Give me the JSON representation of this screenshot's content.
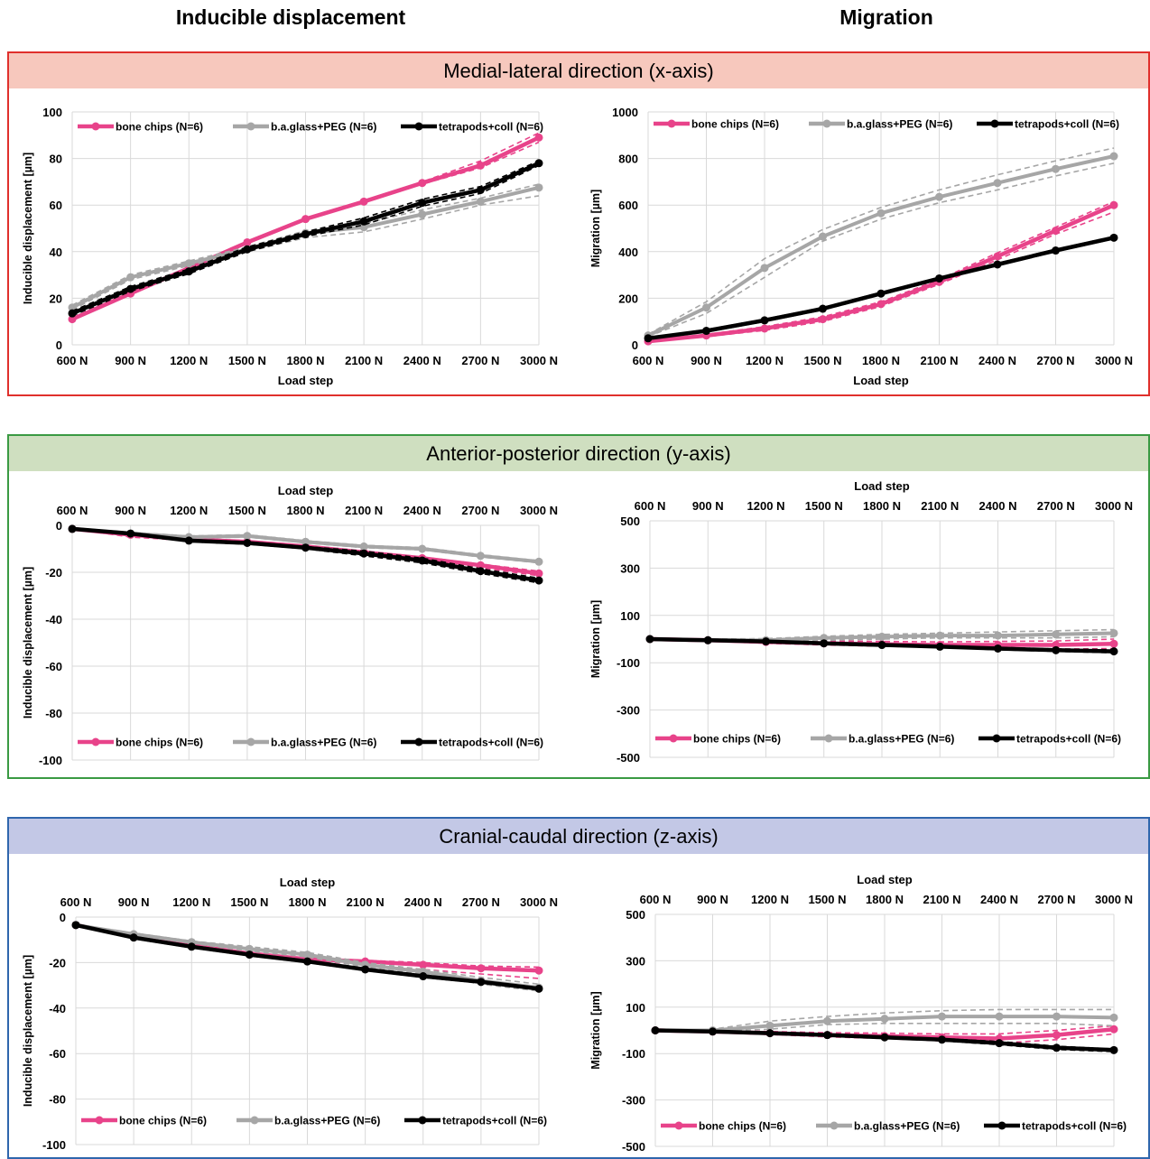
{
  "columns": {
    "left": "Inducible displacement",
    "right": "Migration"
  },
  "panels": [
    {
      "title": "Medial-lateral direction (x-axis)",
      "border": "#e0302c",
      "fill": "#f7c8bd"
    },
    {
      "title": "Anterior-posterior direction (y-axis)",
      "border": "#3a9a43",
      "fill": "#cfdfc0"
    },
    {
      "title": "Cranial-caudal direction (z-axis)",
      "border": "#2f66ad",
      "fill": "#c3c8e6"
    }
  ],
  "colors": {
    "bone": "#e8438a",
    "glass": "#a6a6a6",
    "tetra": "#000000",
    "grid": "#d9d9d9"
  },
  "chart_data": [
    {
      "id": "x-inducible",
      "type": "line",
      "xlabel": "Load step",
      "ylabel": "Inducible displacement [µm]",
      "ylim": [
        0,
        100
      ],
      "yticks": [
        0,
        20,
        40,
        60,
        80,
        100
      ],
      "xaxis_position": "bottom",
      "legend": "top-left",
      "categories": [
        "600 N",
        "900 N",
        "1200 N",
        "1500 N",
        "1800 N",
        "2100 N",
        "2400 N",
        "2700 N",
        "3000 N"
      ],
      "series": [
        {
          "name": "bone chips (N=6)",
          "color": "bone",
          "values": [
            11,
            22,
            33,
            44,
            54,
            61.5,
            69.5,
            77,
            89
          ],
          "upper": [
            11.5,
            22.5,
            33.5,
            44.5,
            54.5,
            62,
            70,
            79,
            91
          ],
          "lower": [
            10.5,
            21.5,
            32.5,
            43.5,
            53.5,
            61,
            69,
            76,
            87
          ]
        },
        {
          "name": "b.a.glass+PEG (N=6)",
          "color": "glass",
          "values": [
            16,
            29,
            35,
            41,
            48,
            50.5,
            56,
            61.5,
            67.5
          ],
          "upper": [
            17,
            30,
            36,
            42,
            49,
            52,
            58,
            63,
            69
          ],
          "lower": [
            15,
            28,
            34,
            40,
            46,
            48.5,
            54,
            60,
            64
          ]
        },
        {
          "name": "tetrapods+coll (N=6)",
          "color": "tetra",
          "values": [
            13.5,
            24,
            31.5,
            41,
            47.5,
            53,
            61,
            66.5,
            78
          ],
          "upper": [
            14.5,
            25,
            32.5,
            42,
            48.5,
            54.5,
            62.5,
            68,
            79
          ],
          "lower": [
            12.5,
            23,
            30.5,
            40,
            46.5,
            51.5,
            59.5,
            65,
            77
          ]
        }
      ]
    },
    {
      "id": "x-migration",
      "type": "line",
      "xlabel": "Load step",
      "ylabel": "Migration [µm]",
      "ylim": [
        0,
        1000
      ],
      "yticks": [
        0,
        200,
        400,
        600,
        800,
        1000
      ],
      "xaxis_position": "bottom",
      "legend": "top-left",
      "categories": [
        "600 N",
        "900 N",
        "1200 N",
        "1500 N",
        "1800 N",
        "2100 N",
        "2400 N",
        "2700 N",
        "3000 N"
      ],
      "series": [
        {
          "name": "bone chips (N=6)",
          "color": "bone",
          "values": [
            15,
            40,
            70,
            110,
            175,
            270,
            380,
            490,
            600
          ],
          "upper": [
            18,
            45,
            78,
            120,
            185,
            280,
            395,
            505,
            615
          ],
          "lower": [
            12,
            35,
            62,
            100,
            165,
            260,
            365,
            475,
            570
          ]
        },
        {
          "name": "b.a.glass+PEG (N=6)",
          "color": "glass",
          "values": [
            40,
            160,
            330,
            465,
            565,
            635,
            695,
            755,
            810
          ],
          "upper": [
            45,
            185,
            370,
            495,
            590,
            665,
            730,
            790,
            845
          ],
          "lower": [
            35,
            135,
            290,
            445,
            540,
            610,
            665,
            725,
            780
          ]
        },
        {
          "name": "tetrapods+coll (N=6)",
          "color": "tetra",
          "values": [
            28,
            60,
            105,
            155,
            220,
            285,
            345,
            405,
            460
          ],
          "upper": [
            30,
            65,
            110,
            160,
            225,
            290,
            350,
            410,
            465
          ],
          "lower": [
            26,
            55,
            100,
            150,
            215,
            280,
            340,
            400,
            455
          ]
        }
      ]
    },
    {
      "id": "y-inducible",
      "type": "line",
      "xlabel": "Load step",
      "ylabel": "Inducible displacement [µm]",
      "ylim": [
        -100,
        0
      ],
      "yticks": [
        0,
        -20,
        -40,
        -60,
        -80,
        -100
      ],
      "xaxis_position": "top",
      "legend": "bottom-left",
      "categories": [
        "600 N",
        "900 N",
        "1200 N",
        "1500 N",
        "1800 N",
        "2100 N",
        "2400 N",
        "2700 N",
        "3000 N"
      ],
      "series": [
        {
          "name": "bone chips (N=6)",
          "color": "bone",
          "values": [
            -1.5,
            -4,
            -6,
            -7,
            -9,
            -11.5,
            -14,
            -17,
            -20.5
          ],
          "upper": [
            -1.5,
            -3.5,
            -5.5,
            -6.5,
            -8.5,
            -11,
            -13.5,
            -16.5,
            -19.5
          ],
          "lower": [
            -1.5,
            -5,
            -6.5,
            -7.5,
            -9.5,
            -12,
            -14.5,
            -18,
            -21.5
          ]
        },
        {
          "name": "b.a.glass+PEG (N=6)",
          "color": "glass",
          "values": [
            -1.5,
            -3.5,
            -5,
            -4.5,
            -7,
            -9,
            -10,
            -13,
            -15.5
          ],
          "upper": [
            -1.5,
            -3,
            -4.5,
            -4,
            -6.5,
            -8.5,
            -9.5,
            -12.5,
            -15
          ],
          "lower": [
            -1.5,
            -4,
            -5.5,
            -5,
            -7.5,
            -9.5,
            -10.5,
            -13.5,
            -16
          ]
        },
        {
          "name": "tetrapods+coll (N=6)",
          "color": "tetra",
          "values": [
            -1.5,
            -3.5,
            -6.5,
            -7.5,
            -9.5,
            -12,
            -15,
            -19.5,
            -23.5
          ],
          "upper": [
            -1.5,
            -3.5,
            -6,
            -7,
            -9,
            -11,
            -14,
            -18.5,
            -22.5
          ],
          "lower": [
            -1.5,
            -3.5,
            -7,
            -8,
            -10,
            -13,
            -16,
            -20.5,
            -24.5
          ]
        }
      ]
    },
    {
      "id": "y-migration",
      "type": "line",
      "xlabel": "Load step",
      "ylabel": "Migration [µm]",
      "ylim": [
        -500,
        500
      ],
      "yticks": [
        500,
        300,
        100,
        -100,
        -300,
        -500
      ],
      "xaxis_position": "top",
      "legend": "bottom-left",
      "categories": [
        "600 N",
        "900 N",
        "1200 N",
        "1500 N",
        "1800 N",
        "2100 N",
        "2400 N",
        "2700 N",
        "3000 N"
      ],
      "series": [
        {
          "name": "bone chips (N=6)",
          "color": "bone",
          "values": [
            0,
            -5,
            -12,
            -18,
            -22,
            -25,
            -25,
            -25,
            -20
          ],
          "upper": [
            2,
            0,
            -5,
            -8,
            -10,
            -12,
            -10,
            -8,
            0
          ],
          "lower": [
            -2,
            -8,
            -18,
            -25,
            -30,
            -35,
            -40,
            -42,
            -40
          ]
        },
        {
          "name": "b.a.glass+PEG (N=6)",
          "color": "glass",
          "values": [
            0,
            -5,
            -5,
            5,
            10,
            15,
            15,
            20,
            25
          ],
          "upper": [
            2,
            0,
            2,
            12,
            20,
            25,
            30,
            35,
            40
          ],
          "lower": [
            -2,
            -10,
            -12,
            -5,
            0,
            5,
            5,
            5,
            10
          ]
        },
        {
          "name": "tetrapods+coll (N=6)",
          "color": "tetra",
          "values": [
            0,
            -5,
            -10,
            -18,
            -25,
            -32,
            -40,
            -47,
            -52
          ],
          "upper": [
            2,
            -3,
            -8,
            -15,
            -22,
            -28,
            -35,
            -42,
            -45
          ],
          "lower": [
            -2,
            -7,
            -12,
            -20,
            -28,
            -35,
            -45,
            -52,
            -58
          ]
        }
      ]
    },
    {
      "id": "z-inducible",
      "type": "line",
      "xlabel": "Load step",
      "ylabel": "Inducible displacement [µm]",
      "ylim": [
        -100,
        0
      ],
      "yticks": [
        0,
        -20,
        -40,
        -60,
        -80,
        -100
      ],
      "xaxis_position": "top",
      "legend": "bottom-left",
      "categories": [
        "600 N",
        "900 N",
        "1200 N",
        "1500 N",
        "1800 N",
        "2100 N",
        "2400 N",
        "2700 N",
        "3000 N"
      ],
      "series": [
        {
          "name": "bone chips (N=6)",
          "color": "bone",
          "values": [
            -3.5,
            -8.5,
            -12.5,
            -16,
            -18.5,
            -19.5,
            -21,
            -22.5,
            -23.5
          ],
          "upper": [
            -3.5,
            -8,
            -12,
            -15.5,
            -18,
            -19,
            -20,
            -21.5,
            -22
          ],
          "lower": [
            -3.5,
            -9,
            -13,
            -16.5,
            -19,
            -21,
            -23,
            -25,
            -27
          ]
        },
        {
          "name": "b.a.glass+PEG (N=6)",
          "color": "glass",
          "values": [
            -3.5,
            -7.5,
            -11,
            -14,
            -16.5,
            -21,
            -24,
            -28,
            -31
          ],
          "upper": [
            -3.5,
            -7,
            -10.5,
            -13,
            -15.5,
            -20,
            -23,
            -26.5,
            -29.5
          ],
          "lower": [
            -3.5,
            -8,
            -11.5,
            -15,
            -17.5,
            -22,
            -25,
            -29.5,
            -32.5
          ]
        },
        {
          "name": "tetrapods+coll (N=6)",
          "color": "tetra",
          "values": [
            -3.5,
            -9,
            -13,
            -16.5,
            -19.5,
            -23,
            -26,
            -28.5,
            -31.5
          ],
          "upper": [
            -3.5,
            -8.5,
            -12.5,
            -16,
            -19,
            -22.5,
            -25.5,
            -28,
            -31
          ],
          "lower": [
            -3.5,
            -9.5,
            -13.5,
            -17,
            -20,
            -23.5,
            -26.5,
            -29,
            -32
          ]
        }
      ]
    },
    {
      "id": "z-migration",
      "type": "line",
      "xlabel": "Load step",
      "ylabel": "Migration [µm]",
      "ylim": [
        -500,
        500
      ],
      "yticks": [
        500,
        300,
        100,
        -100,
        -300,
        -500
      ],
      "xaxis_position": "top",
      "legend": "bottom-left",
      "categories": [
        "600 N",
        "900 N",
        "1200 N",
        "1500 N",
        "1800 N",
        "2100 N",
        "2400 N",
        "2700 N",
        "3000 N"
      ],
      "series": [
        {
          "name": "bone chips (N=6)",
          "color": "bone",
          "values": [
            0,
            -5,
            -12,
            -20,
            -25,
            -30,
            -35,
            -20,
            5
          ],
          "upper": [
            2,
            0,
            -5,
            -10,
            -12,
            -15,
            -15,
            0,
            20
          ],
          "lower": [
            -2,
            -8,
            -18,
            -28,
            -35,
            -45,
            -55,
            -40,
            -15
          ]
        },
        {
          "name": "b.a.glass+PEG (N=6)",
          "color": "glass",
          "values": [
            0,
            0,
            20,
            40,
            50,
            60,
            60,
            60,
            55
          ],
          "upper": [
            2,
            5,
            40,
            60,
            75,
            85,
            90,
            90,
            90
          ],
          "lower": [
            -2,
            -5,
            5,
            25,
            30,
            30,
            30,
            30,
            20
          ]
        },
        {
          "name": "tetrapods+coll (N=6)",
          "color": "tetra",
          "values": [
            0,
            -5,
            -12,
            -20,
            -30,
            -40,
            -55,
            -75,
            -85
          ],
          "upper": [
            2,
            -3,
            -10,
            -18,
            -28,
            -35,
            -48,
            -68,
            -80
          ],
          "lower": [
            -2,
            -7,
            -15,
            -23,
            -33,
            -45,
            -62,
            -82,
            -92
          ]
        }
      ]
    }
  ]
}
